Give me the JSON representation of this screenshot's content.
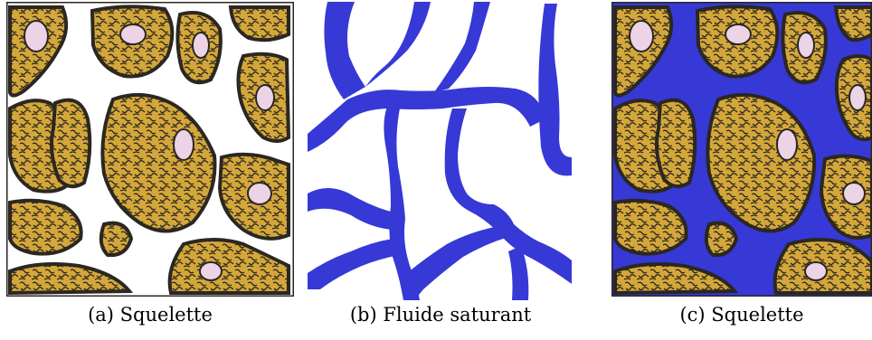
{
  "figure": {
    "panels": [
      {
        "caption": "(a) Squelette",
        "content": "skeleton"
      },
      {
        "caption": "(b) Fluide saturant",
        "content": "fluid"
      },
      {
        "caption": "(c) Squelette",
        "content": "skeleton+fluid"
      }
    ]
  },
  "colors": {
    "grain_fill": "#d4a73a",
    "grain_outline": "#2b2721",
    "pore_core": "#ecd3e6",
    "fluid": "#3639d6",
    "background": "#ffffff"
  }
}
